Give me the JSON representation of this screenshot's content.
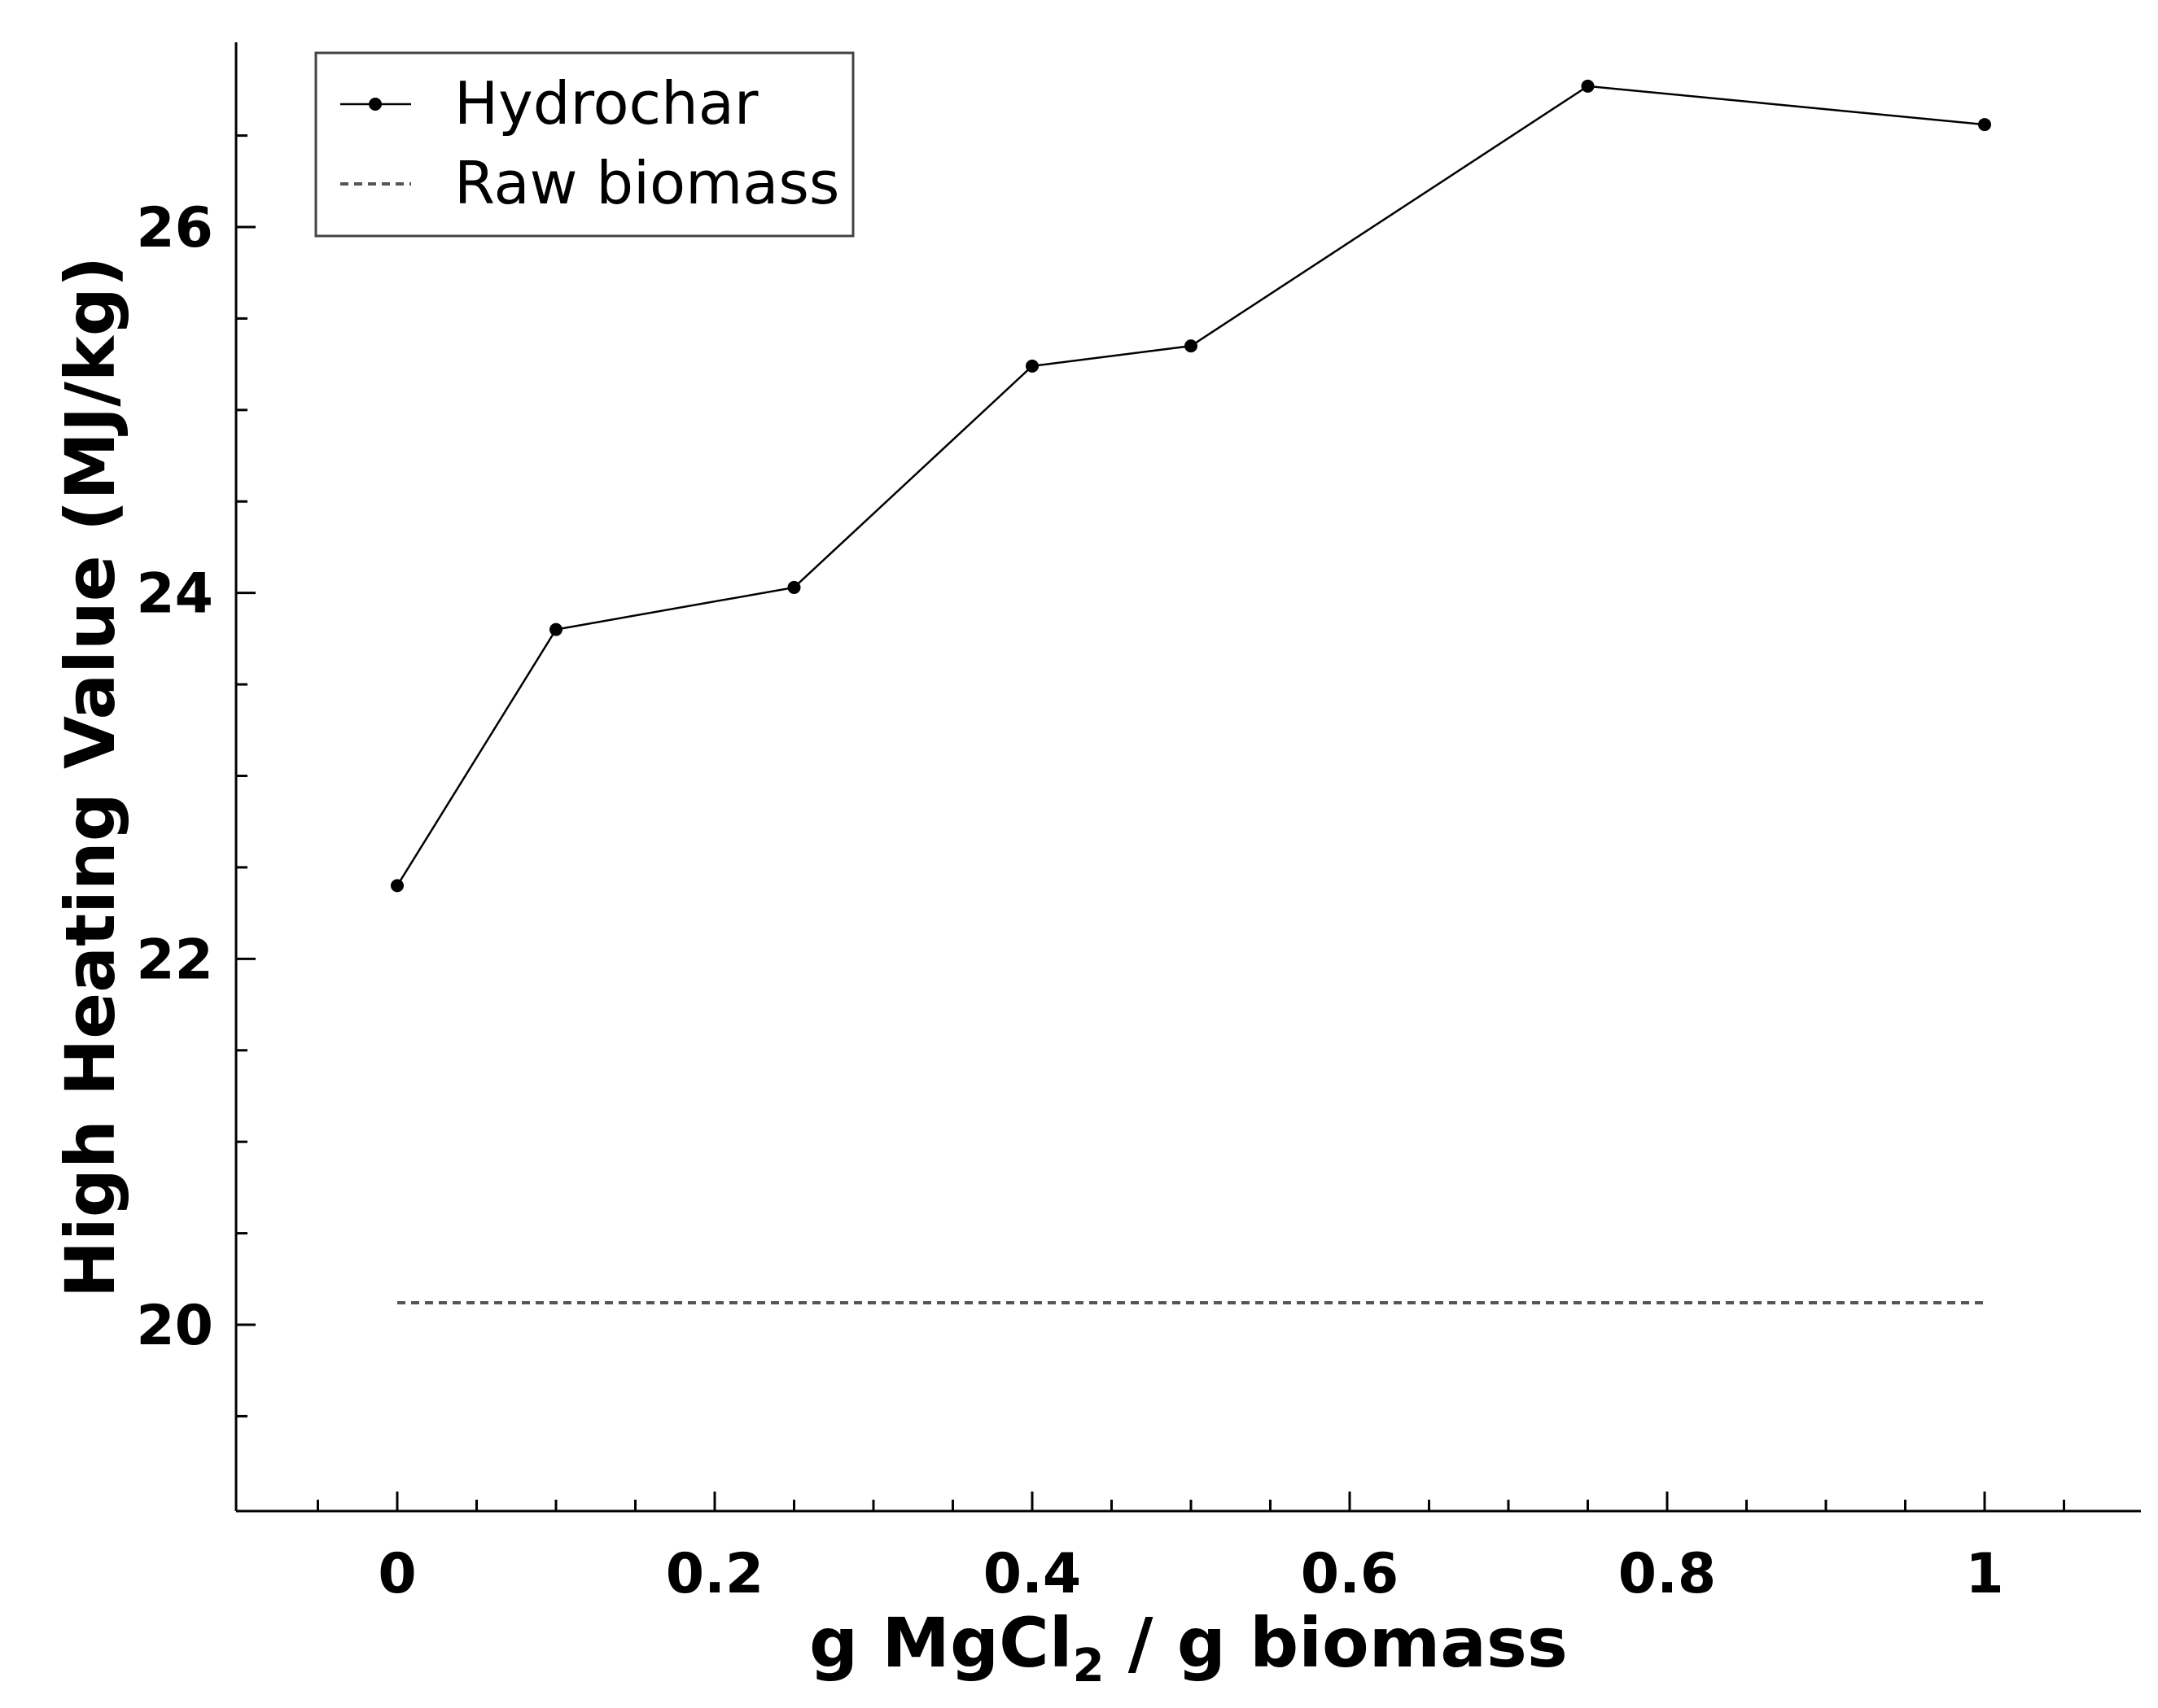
{
  "chart_data": {
    "type": "line",
    "title": "",
    "xlabel_main": "g MgCl",
    "xlabel_sub": "2",
    "xlabel_rest": " / g biomass",
    "ylabel": "High Heating Value (MJ/kg)",
    "xlim": [
      -0.1,
      1.1
    ],
    "ylim": [
      19,
      27
    ],
    "xticks": [
      0,
      0.2,
      0.4,
      0.6,
      0.8,
      1
    ],
    "xtick_labels": [
      "0",
      "0.2",
      "0.4",
      "0.6",
      "0.8",
      "1"
    ],
    "xminor": [
      -0.05,
      0.05,
      0.1,
      0.15,
      0.25,
      0.3,
      0.35,
      0.45,
      0.5,
      0.55,
      0.65,
      0.7,
      0.75,
      0.85,
      0.9,
      0.95,
      1.05
    ],
    "yticks": [
      20,
      22,
      24,
      26
    ],
    "ytick_labels": [
      "20",
      "22",
      "24",
      "26"
    ],
    "yminor": [
      19.5,
      20.5,
      21,
      21.5,
      22.5,
      23,
      23.5,
      24.5,
      25,
      25.5,
      26.5
    ],
    "grid": false,
    "legend_position": "top-left",
    "series": [
      {
        "name": "Hydrochar",
        "style": "solid-marker",
        "x": [
          0,
          0.1,
          0.25,
          0.4,
          0.5,
          0.75,
          1
        ],
        "y": [
          22.4,
          23.8,
          24.03,
          25.24,
          25.35,
          26.77,
          26.56
        ]
      },
      {
        "name": "Raw biomass",
        "style": "dashed",
        "x": [
          0,
          1
        ],
        "y": [
          20.12,
          20.12
        ]
      }
    ]
  }
}
